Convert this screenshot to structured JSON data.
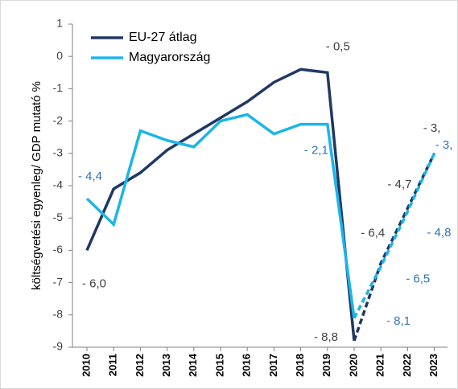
{
  "chart_data": {
    "type": "line",
    "y_label": "költségvetési egyenleg/ GDP mutató %",
    "categories": [
      "2010",
      "2011",
      "2012",
      "2013",
      "2014",
      "2015",
      "2016",
      "2017",
      "2018",
      "2019",
      "2020",
      "2021",
      "2022",
      "2023"
    ],
    "dash_from": "2020",
    "series": [
      {
        "name": "EU-27 átlag",
        "color": "#203864",
        "label_color": "#404040",
        "values": [
          -6.0,
          -4.1,
          -3.6,
          -2.9,
          -2.4,
          -1.9,
          -1.4,
          -0.8,
          -0.4,
          -0.5,
          -8.8,
          -6.4,
          -4.7,
          -3.0
        ],
        "value_labels": [
          "- 6,0",
          null,
          null,
          null,
          null,
          null,
          null,
          null,
          null,
          "- 0,5",
          "- 8,8",
          "- 6,4",
          "- 4,7",
          "- 3,"
        ]
      },
      {
        "name": "Magyarország",
        "color": "#1cb5e8",
        "label_color": "#2e75b6",
        "values": [
          -4.4,
          -5.2,
          -2.3,
          -2.6,
          -2.8,
          -2.0,
          -1.8,
          -2.4,
          -2.1,
          -2.1,
          -8.1,
          -6.5,
          -4.8,
          -3.0
        ],
        "value_labels": [
          "- 4,4",
          null,
          null,
          null,
          null,
          null,
          null,
          null,
          null,
          "- 2,1",
          "- 8,1",
          "- 6,5",
          "- 4,8",
          "- 3,"
        ]
      }
    ],
    "ylim": [
      -9,
      1
    ],
    "yticks": [
      1,
      0,
      -1,
      -2,
      -3,
      -4,
      -5,
      -6,
      -7,
      -8,
      -9
    ]
  }
}
